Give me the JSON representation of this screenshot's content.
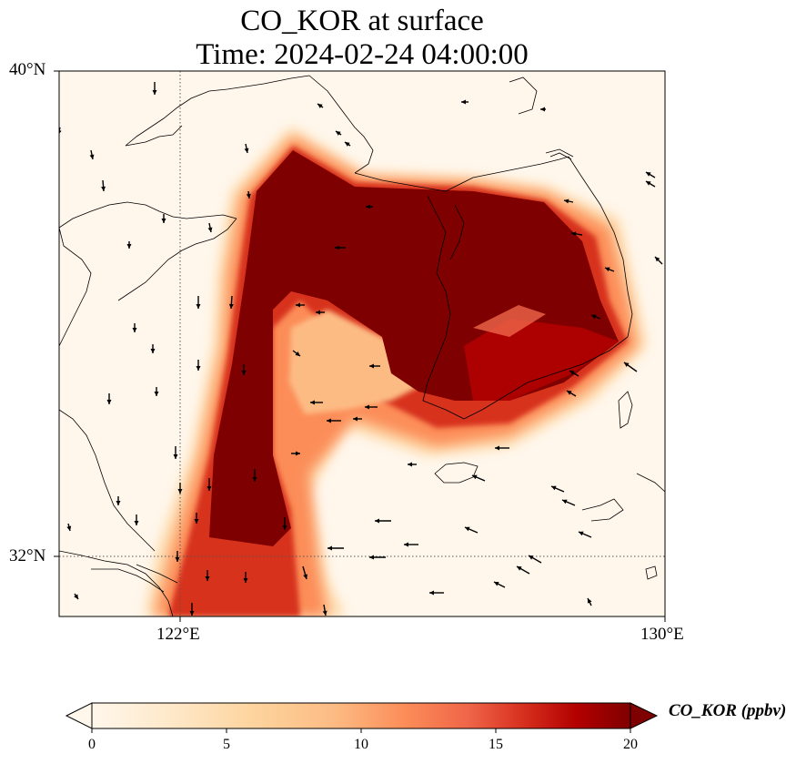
{
  "title": {
    "line1": "CO_KOR at surface",
    "line2": "Time: 2024-02-24 04:00:00"
  },
  "axes": {
    "lat_labels": [
      "40°N",
      "32°N"
    ],
    "lon_labels": [
      "122°E",
      "130°E"
    ],
    "lat_range": [
      31,
      40
    ],
    "lon_range": [
      120,
      130
    ],
    "gridlines": "dotted at 122°E and 32°N"
  },
  "colorbar": {
    "label": "CO_KOR (ppbv)",
    "ticks": [
      "0",
      "5",
      "10",
      "15",
      "20"
    ],
    "range": [
      0,
      20
    ],
    "colormap": "OrRd",
    "extend": "both",
    "colors": [
      "#fff7ec",
      "#fee8c8",
      "#fdd49e",
      "#fdbb84",
      "#fc8d59",
      "#ef6548",
      "#d7301f",
      "#b30000",
      "#7f0000"
    ]
  },
  "map": {
    "plume_color_max": "#7f0000",
    "background_color": "#fff7ec",
    "wind_arrow_color": "#000000"
  }
}
